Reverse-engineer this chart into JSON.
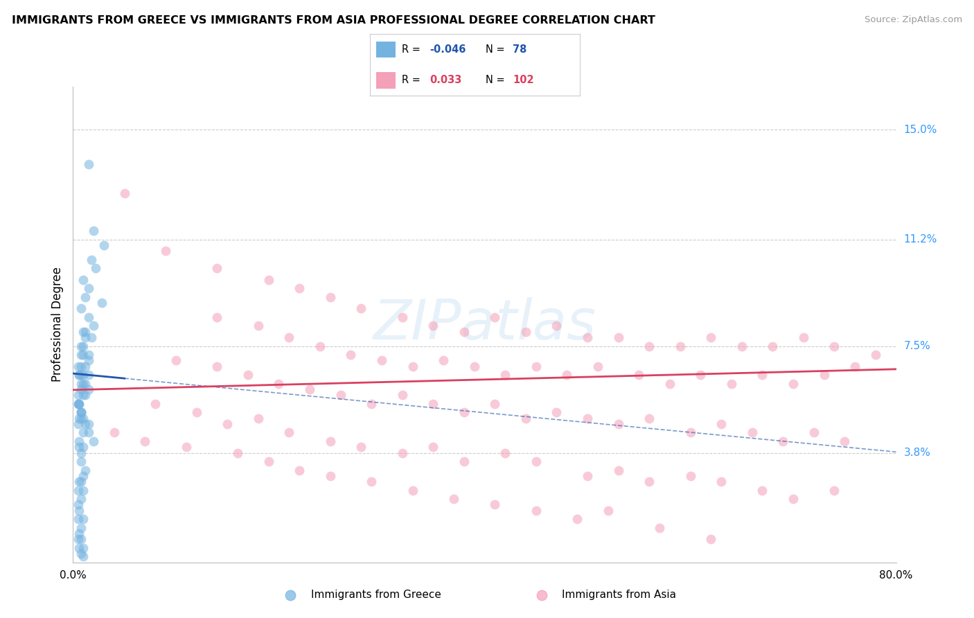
{
  "title": "IMMIGRANTS FROM GREECE VS IMMIGRANTS FROM ASIA PROFESSIONAL DEGREE CORRELATION CHART",
  "source": "Source: ZipAtlas.com",
  "ylabel": "Professional Degree",
  "y_tick_labels": [
    "15.0%",
    "11.2%",
    "7.5%",
    "3.8%"
  ],
  "y_tick_values": [
    15.0,
    11.2,
    7.5,
    3.8
  ],
  "x_lim": [
    0.0,
    80.0
  ],
  "y_lim": [
    0.0,
    16.5
  ],
  "watermark": "ZIPatlas",
  "blue_color": "#74b3e0",
  "pink_color": "#f4a0b8",
  "blue_line_color": "#2255aa",
  "pink_line_color": "#d94060",
  "blue_r": "-0.046",
  "blue_n": "78",
  "pink_r": "0.033",
  "pink_n": "102",
  "trend_blue_x0": 0.0,
  "trend_blue_y0": 6.55,
  "trend_blue_slope": -0.034,
  "trend_pink_x0": 0.0,
  "trend_pink_y0": 5.98,
  "trend_pink_slope": 0.009,
  "blue_solid_x_end": 5.0,
  "grid_color": "#cccccc",
  "background_color": "#ffffff",
  "blue_scatter_x": [
    1.5,
    2.0,
    3.0,
    1.8,
    2.2,
    1.0,
    1.5,
    2.8,
    1.2,
    0.8,
    1.5,
    2.0,
    1.2,
    1.8,
    1.0,
    0.8,
    1.5,
    1.2,
    1.0,
    0.8,
    1.5,
    1.2,
    1.0,
    0.8,
    0.6,
    1.5,
    1.2,
    1.0,
    0.8,
    0.6,
    1.5,
    1.2,
    1.0,
    0.5,
    0.8,
    1.0,
    0.6,
    0.8,
    0.5,
    0.6,
    0.8,
    1.0,
    1.2,
    0.8,
    0.5,
    1.0,
    0.6,
    1.5,
    2.0,
    1.0,
    0.8,
    0.6,
    0.8,
    1.2,
    1.0,
    0.8,
    0.5,
    0.6,
    1.0,
    0.8,
    0.5,
    0.6,
    1.0,
    0.8,
    0.5,
    0.6,
    0.8,
    1.0,
    0.5,
    0.6,
    0.8,
    1.0,
    0.5,
    0.6,
    0.8,
    1.5,
    0.5,
    0.8
  ],
  "blue_scatter_y": [
    13.8,
    11.5,
    11.0,
    10.5,
    10.2,
    9.8,
    9.5,
    9.0,
    9.2,
    8.8,
    8.5,
    8.2,
    8.0,
    7.8,
    8.0,
    7.5,
    7.2,
    7.8,
    7.5,
    7.2,
    7.0,
    6.8,
    7.2,
    6.8,
    6.5,
    6.5,
    6.2,
    6.5,
    6.2,
    6.5,
    6.0,
    5.8,
    6.2,
    5.5,
    6.0,
    5.8,
    5.5,
    5.2,
    5.5,
    5.0,
    5.2,
    5.0,
    4.8,
    5.0,
    4.8,
    4.5,
    4.2,
    4.5,
    4.2,
    4.0,
    3.8,
    4.0,
    3.5,
    3.2,
    3.0,
    2.8,
    2.5,
    2.8,
    2.5,
    2.2,
    2.0,
    1.8,
    1.5,
    1.2,
    1.5,
    1.0,
    0.8,
    0.5,
    0.8,
    0.5,
    0.3,
    0.2,
    5.8,
    5.5,
    5.2,
    4.8,
    6.8,
    6.5
  ],
  "pink_scatter_x": [
    5.0,
    9.0,
    14.0,
    19.0,
    22.0,
    25.0,
    28.0,
    32.0,
    35.0,
    38.0,
    41.0,
    44.0,
    47.0,
    50.0,
    53.0,
    56.0,
    59.0,
    62.0,
    65.0,
    68.0,
    71.0,
    74.0,
    78.0,
    14.0,
    18.0,
    21.0,
    24.0,
    27.0,
    30.0,
    33.0,
    36.0,
    39.0,
    42.0,
    45.0,
    48.0,
    51.0,
    55.0,
    58.0,
    61.0,
    64.0,
    67.0,
    70.0,
    73.0,
    76.0,
    10.0,
    14.0,
    17.0,
    20.0,
    23.0,
    26.0,
    29.0,
    32.0,
    35.0,
    38.0,
    41.0,
    44.0,
    47.0,
    50.0,
    53.0,
    56.0,
    60.0,
    63.0,
    66.0,
    69.0,
    72.0,
    75.0,
    8.0,
    12.0,
    15.0,
    18.0,
    21.0,
    25.0,
    28.0,
    32.0,
    35.0,
    38.0,
    42.0,
    45.0,
    50.0,
    53.0,
    56.0,
    60.0,
    63.0,
    67.0,
    70.0,
    74.0,
    4.0,
    7.0,
    11.0,
    16.0,
    19.0,
    22.0,
    25.0,
    29.0,
    33.0,
    37.0,
    41.0,
    45.0,
    49.0,
    52.0,
    57.0,
    62.0
  ],
  "pink_scatter_y": [
    12.8,
    10.8,
    10.2,
    9.8,
    9.5,
    9.2,
    8.8,
    8.5,
    8.2,
    8.0,
    8.5,
    8.0,
    8.2,
    7.8,
    7.8,
    7.5,
    7.5,
    7.8,
    7.5,
    7.5,
    7.8,
    7.5,
    7.2,
    8.5,
    8.2,
    7.8,
    7.5,
    7.2,
    7.0,
    6.8,
    7.0,
    6.8,
    6.5,
    6.8,
    6.5,
    6.8,
    6.5,
    6.2,
    6.5,
    6.2,
    6.5,
    6.2,
    6.5,
    6.8,
    7.0,
    6.8,
    6.5,
    6.2,
    6.0,
    5.8,
    5.5,
    5.8,
    5.5,
    5.2,
    5.5,
    5.0,
    5.2,
    5.0,
    4.8,
    5.0,
    4.5,
    4.8,
    4.5,
    4.2,
    4.5,
    4.2,
    5.5,
    5.2,
    4.8,
    5.0,
    4.5,
    4.2,
    4.0,
    3.8,
    4.0,
    3.5,
    3.8,
    3.5,
    3.0,
    3.2,
    2.8,
    3.0,
    2.8,
    2.5,
    2.2,
    2.5,
    4.5,
    4.2,
    4.0,
    3.8,
    3.5,
    3.2,
    3.0,
    2.8,
    2.5,
    2.2,
    2.0,
    1.8,
    1.5,
    1.8,
    1.2,
    0.8
  ]
}
